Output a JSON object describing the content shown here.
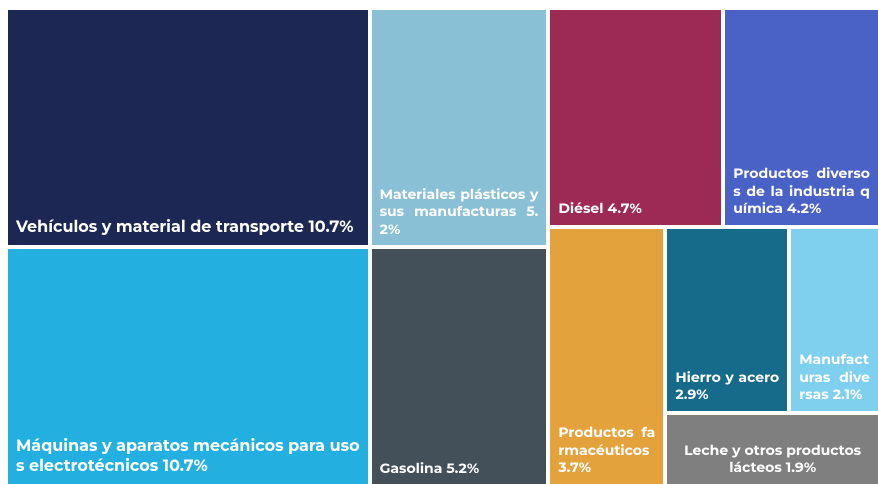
{
  "chart_data": {
    "type": "treemap",
    "categories": [
      "Vehículos y material de transporte",
      "Máquinas y aparatos mecánicos para usos electrotécnicos",
      "Materiales plásticos y sus manufacturas",
      "Gasolina",
      "Diésel",
      "Productos diversos de la industria química",
      "Productos farmacéuticos",
      "Hierro y acero",
      "Manufacturas diversas",
      "Leche y otros productos lácteos"
    ],
    "values": [
      10.7,
      10.7,
      5.2,
      5.2,
      4.7,
      4.2,
      3.7,
      2.9,
      2.1,
      1.9
    ],
    "value_labels": [
      "10.7%",
      "10.7%",
      "5.2%",
      "5.2%",
      "4.7%",
      "4.2%",
      "3.7%",
      "2.9%",
      "2.1%",
      "1.9%"
    ],
    "colors": [
      "#1c2754",
      "#23b0e0",
      "#8ac0d5",
      "#434f59",
      "#9c2a55",
      "#4a62c6",
      "#e4a23c",
      "#166a8a",
      "#7fd0ef",
      "#7f7f7f"
    ]
  }
}
